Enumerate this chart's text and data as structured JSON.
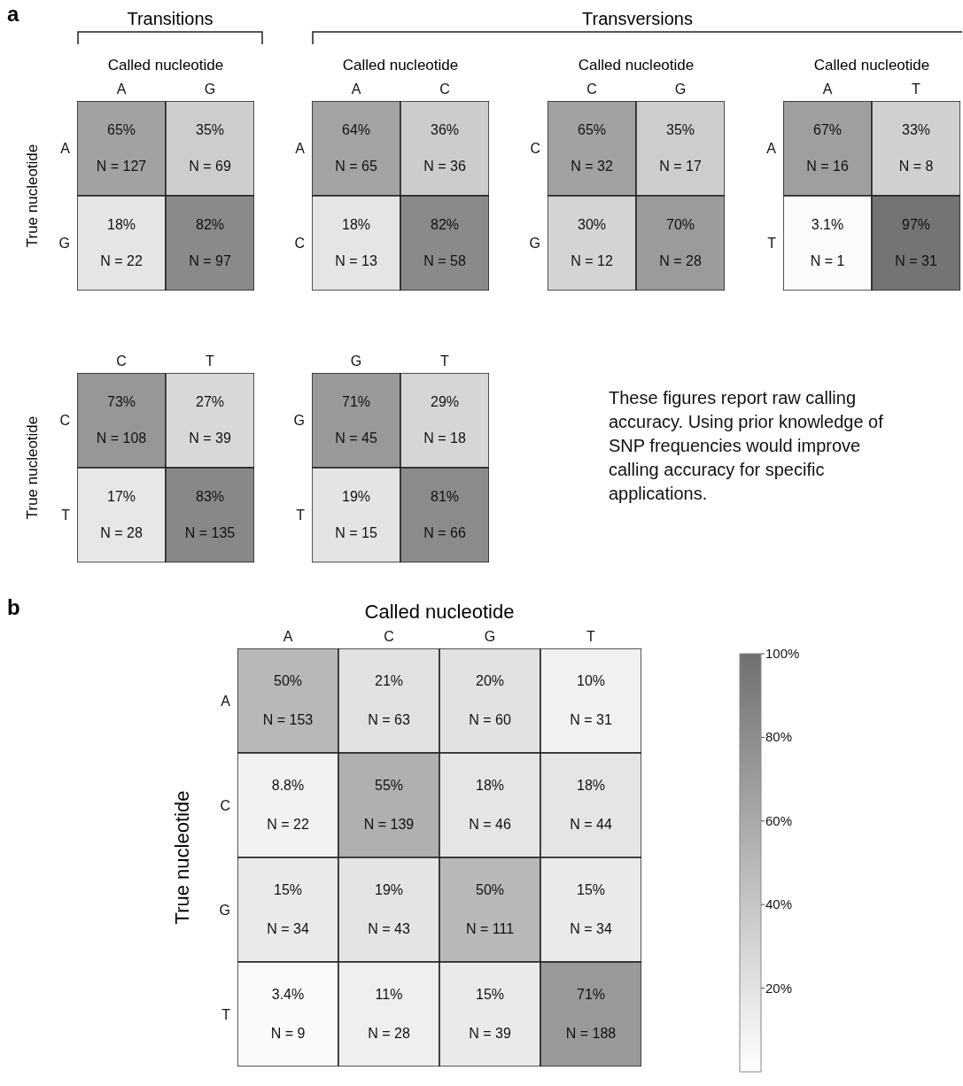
{
  "chart_data": [
    {
      "type": "heatmap",
      "xlabel": "Called nucleotide",
      "ylabel": "True nucleotide",
      "categories": [
        "A",
        "G"
      ],
      "y_categories": [
        "A",
        "G"
      ],
      "cells": [
        [
          65,
          35
        ],
        [
          18,
          82
        ]
      ],
      "cell_labels": [
        [
          "65%",
          "35%"
        ],
        [
          "18%",
          "82%"
        ]
      ],
      "annotations": [
        "a",
        "Transitions",
        "Transversions",
        "N = 127",
        "N = 69",
        "N = 22",
        "N = 97"
      ]
    },
    {
      "type": "heatmap",
      "xlabel": "Called nucleotide",
      "categories": [
        "A",
        "C"
      ],
      "y_categories": [
        "A",
        "C"
      ],
      "cells": [
        [
          64,
          36
        ],
        [
          18,
          82
        ]
      ],
      "cell_labels": [
        [
          "64%",
          "36%"
        ],
        [
          "18%",
          "82%"
        ]
      ],
      "annotations": [
        "N = 65",
        "N = 36",
        "N = 13",
        "N = 58"
      ]
    },
    {
      "type": "heatmap",
      "xlabel": "Called nucleotide",
      "categories": [
        "C",
        "G"
      ],
      "y_categories": [
        "C",
        "G"
      ],
      "cells": [
        [
          65,
          35
        ],
        [
          30,
          70
        ]
      ],
      "cell_labels": [
        [
          "65%",
          "35%"
        ],
        [
          "30%",
          "70%"
        ]
      ],
      "annotations": [
        "N = 32",
        "N = 17",
        "N = 12",
        "N = 28"
      ]
    },
    {
      "type": "heatmap",
      "xlabel": "Called nucleotide",
      "categories": [
        "A",
        "T"
      ],
      "y_categories": [
        "A",
        "T"
      ],
      "cells": [
        [
          67,
          33
        ],
        [
          3.1,
          97
        ]
      ],
      "cell_labels": [
        [
          "67%",
          "33%"
        ],
        [
          "3.1%",
          "97%"
        ]
      ],
      "annotations": [
        "N = 16",
        "N = 8",
        "N = 1",
        "N = 31"
      ]
    },
    {
      "type": "heatmap",
      "ylabel": "True nucleotide",
      "categories": [
        "C",
        "T"
      ],
      "y_categories": [
        "C",
        "T"
      ],
      "cells": [
        [
          73,
          27
        ],
        [
          17,
          83
        ]
      ],
      "cell_labels": [
        [
          "73%",
          "27%"
        ],
        [
          "17%",
          "83%"
        ]
      ],
      "annotations": [
        "N = 108",
        "N = 39",
        "N = 28",
        "N = 135"
      ]
    },
    {
      "type": "heatmap",
      "categories": [
        "G",
        "T"
      ],
      "y_categories": [
        "G",
        "T"
      ],
      "cells": [
        [
          71,
          29
        ],
        [
          19,
          81
        ]
      ],
      "cell_labels": [
        [
          "71%",
          "29%"
        ],
        [
          "19%",
          "81%"
        ]
      ],
      "annotations": [
        "These figures report raw calling accuracy. Using prior knowledge of SNP frequencies would improve calling accuracy for specific applications.",
        "N = 45",
        "N = 18",
        "N = 15",
        "N = 66"
      ]
    },
    {
      "type": "heatmap",
      "xlabel": "Called nucleotide",
      "ylabel": "True nucleotide",
      "categories": [
        "A",
        "C",
        "G",
        "T"
      ],
      "y_categories": [
        "A",
        "C",
        "G",
        "T"
      ],
      "cells": [
        [
          50,
          21,
          20,
          10
        ],
        [
          8.8,
          55,
          18,
          18
        ],
        [
          15,
          19,
          50,
          15
        ],
        [
          3.4,
          11,
          15,
          71
        ]
      ],
      "cell_labels": [
        [
          "50%",
          "21%",
          "20%",
          "10%"
        ],
        [
          "8.8%",
          "55%",
          "18%",
          "18%"
        ],
        [
          "15%",
          "19%",
          "50%",
          "15%"
        ],
        [
          "3.4%",
          "11%",
          "15%",
          "71%"
        ]
      ],
      "clim": [
        0,
        100
      ],
      "cticks": [
        {
          "value": 20,
          "label": "20%"
        },
        {
          "value": 40,
          "label": "40%"
        },
        {
          "value": 60,
          "label": "60%"
        },
        {
          "value": 80,
          "label": "80%"
        },
        {
          "value": 100,
          "label": "100%"
        }
      ],
      "annotations": [
        "b",
        "N = 153",
        "N = 63",
        "N = 60",
        "N = 31",
        "N = 22",
        "N = 139",
        "N = 46",
        "N = 44",
        "N = 34",
        "N = 43",
        "N = 111",
        "N = 34",
        "N = 9",
        "N = 28",
        "N = 39",
        "N = 188"
      ]
    }
  ]
}
